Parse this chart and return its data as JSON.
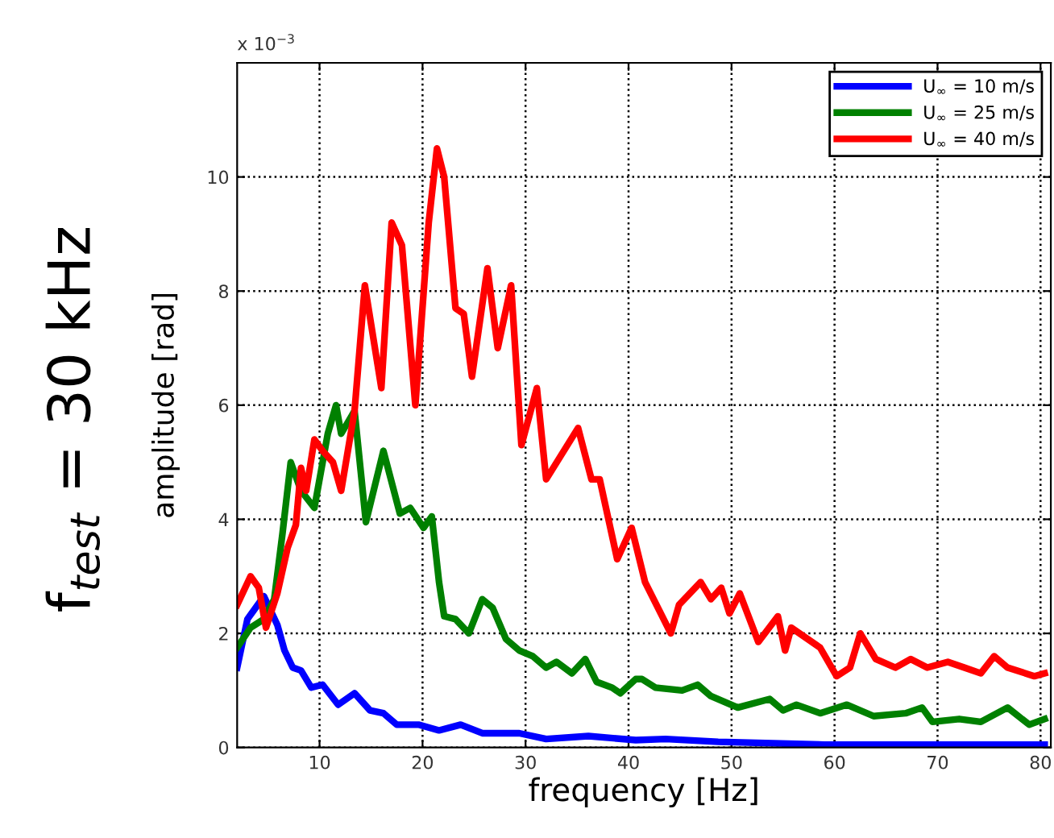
{
  "chart_data": {
    "type": "line",
    "xlabel": "frequency [Hz]",
    "ylabel": "amplitude [rad]",
    "annotations": [
      "x 10$^{−3}$",
      "f$_{test}$ = 30 kHz"
    ],
    "xlim": [
      2,
      81
    ],
    "ylim": [
      0,
      12
    ],
    "xticks": [
      10,
      20,
      30,
      40,
      50,
      60,
      70,
      80
    ],
    "yticks": [
      0,
      2,
      4,
      6,
      8,
      10
    ],
    "grid": true,
    "legend": "top right",
    "line_style": "solid",
    "marker": "none",
    "series": [
      {
        "name": "U$_{∞}$ = 10 m/s",
        "color": "#0000ff",
        "x": [
          2,
          3,
          4.6,
          5.9,
          6.6,
          7.4,
          8.2,
          9.2,
          10.3,
          11.8,
          13.4,
          14.9,
          16.2,
          17.5,
          19.6,
          21.6,
          23.7,
          25.8,
          29.4,
          32,
          36.1,
          40.7,
          43.6,
          48.7,
          59,
          80.4
        ],
        "values": [
          1.4,
          2.25,
          2.65,
          2.15,
          1.7,
          1.4,
          1.35,
          1.05,
          1.1,
          0.75,
          0.95,
          0.65,
          0.6,
          0.4,
          0.4,
          0.3,
          0.4,
          0.25,
          0.25,
          0.15,
          0.2,
          0.13,
          0.15,
          0.1,
          0.05,
          0.05
        ]
      },
      {
        "name": "U$_{∞}$ = 25 m/s",
        "color": "#008000",
        "x": [
          2,
          3.3,
          4.6,
          5.6,
          6.4,
          7.2,
          8.2,
          9.5,
          10.8,
          11.6,
          12.1,
          13.4,
          14.5,
          16.2,
          17.8,
          18.8,
          20.1,
          20.9,
          21.6,
          22.1,
          23.2,
          24.5,
          25.8,
          26.8,
          28.1,
          29.4,
          30.7,
          32,
          33,
          34.5,
          35.8,
          36.9,
          38.4,
          39.2,
          40.7,
          41.3,
          42.6,
          45.2,
          46.7,
          48,
          50.6,
          53.7,
          55,
          56.3,
          58.6,
          61.2,
          63.8,
          66.9,
          68.5,
          69.5,
          72.1,
          74.2,
          76.8,
          78.9,
          80.4
        ],
        "values": [
          1.75,
          2.1,
          2.25,
          2.6,
          3.75,
          5.0,
          4.5,
          4.2,
          5.5,
          6.0,
          5.5,
          5.9,
          3.95,
          5.2,
          4.1,
          4.2,
          3.85,
          4.05,
          2.9,
          2.3,
          2.25,
          2.0,
          2.6,
          2.45,
          1.9,
          1.7,
          1.6,
          1.4,
          1.5,
          1.3,
          1.55,
          1.15,
          1.05,
          0.95,
          1.2,
          1.2,
          1.05,
          1.0,
          1.1,
          0.9,
          0.7,
          0.85,
          0.65,
          0.75,
          0.6,
          0.75,
          0.55,
          0.6,
          0.7,
          0.45,
          0.5,
          0.45,
          0.7,
          0.4,
          0.5
        ]
      },
      {
        "name": "U$_{∞}$ = 40 m/s",
        "color": "#ff0000",
        "x": [
          2,
          3.3,
          4.1,
          4.8,
          5.9,
          6.9,
          7.7,
          8.2,
          8.7,
          9.5,
          10.3,
          11.3,
          12.1,
          13.4,
          14.4,
          16,
          17,
          18,
          19.3,
          20.6,
          21.4,
          22.1,
          23.2,
          24,
          24.8,
          26.3,
          27.3,
          28.6,
          29.6,
          31.1,
          32,
          35.1,
          36.4,
          37.2,
          38.9,
          40.3,
          41.6,
          44.1,
          44.9,
          47,
          48,
          49,
          49.8,
          50.8,
          52.6,
          54.5,
          55.2,
          55.8,
          58.6,
          60.2,
          61.5,
          62.5,
          64,
          65.9,
          67.4,
          69,
          71,
          72.6,
          74.2,
          75.5,
          76.8,
          79.4,
          80.4
        ],
        "values": [
          2.5,
          3.0,
          2.8,
          2.1,
          2.7,
          3.5,
          3.9,
          4.9,
          4.5,
          5.4,
          5.2,
          5.0,
          4.5,
          5.9,
          8.1,
          6.3,
          9.2,
          8.8,
          6.0,
          9.2,
          10.5,
          10.0,
          7.7,
          7.6,
          6.5,
          8.4,
          7.0,
          8.1,
          5.3,
          6.3,
          4.7,
          5.6,
          4.7,
          4.7,
          3.3,
          3.85,
          2.9,
          2.0,
          2.5,
          2.9,
          2.6,
          2.8,
          2.35,
          2.7,
          1.85,
          2.3,
          1.7,
          2.1,
          1.75,
          1.25,
          1.4,
          2.0,
          1.55,
          1.4,
          1.55,
          1.4,
          1.5,
          1.4,
          1.3,
          1.6,
          1.4,
          1.25,
          1.3
        ]
      }
    ]
  }
}
